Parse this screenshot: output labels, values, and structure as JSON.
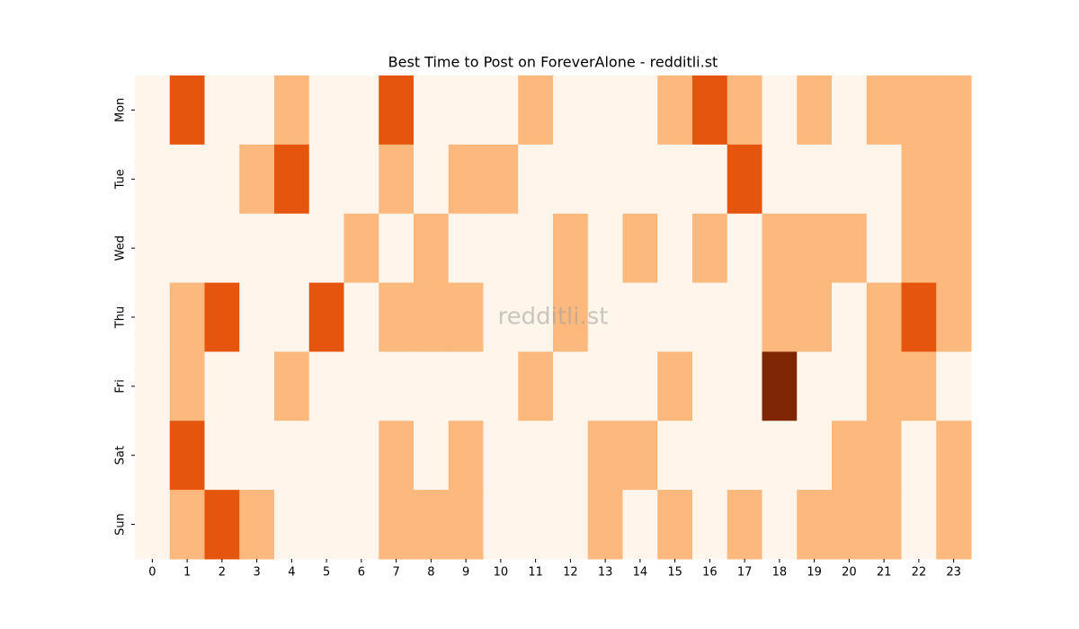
{
  "chart_data": {
    "type": "heatmap",
    "title": "Best Time to Post on ForeverAlone - redditli.st",
    "watermark": "redditli.st",
    "x": [
      0,
      1,
      2,
      3,
      4,
      5,
      6,
      7,
      8,
      9,
      10,
      11,
      12,
      13,
      14,
      15,
      16,
      17,
      18,
      19,
      20,
      21,
      22,
      23
    ],
    "y": [
      "Mon",
      "Tue",
      "Wed",
      "Thu",
      "Fri",
      "Sat",
      "Sun"
    ],
    "values": [
      [
        0,
        2,
        0,
        0,
        1,
        0,
        0,
        2,
        0,
        0,
        0,
        1,
        0,
        0,
        0,
        1,
        2,
        1,
        0,
        1,
        0,
        1,
        1,
        1
      ],
      [
        0,
        0,
        0,
        1,
        2,
        0,
        0,
        1,
        0,
        1,
        1,
        0,
        0,
        0,
        0,
        0,
        0,
        2,
        0,
        0,
        0,
        0,
        1,
        1
      ],
      [
        0,
        0,
        0,
        0,
        0,
        0,
        1,
        0,
        1,
        0,
        0,
        0,
        1,
        0,
        1,
        0,
        1,
        0,
        1,
        1,
        1,
        0,
        1,
        1
      ],
      [
        0,
        1,
        2,
        0,
        0,
        2,
        0,
        1,
        1,
        1,
        0,
        0,
        1,
        0,
        0,
        0,
        0,
        0,
        1,
        1,
        0,
        1,
        2,
        1
      ],
      [
        0,
        1,
        0,
        0,
        1,
        0,
        0,
        0,
        0,
        0,
        0,
        1,
        0,
        0,
        0,
        1,
        0,
        0,
        3,
        0,
        0,
        1,
        1,
        0
      ],
      [
        0,
        2,
        0,
        0,
        0,
        0,
        0,
        1,
        0,
        1,
        0,
        0,
        0,
        1,
        1,
        0,
        0,
        0,
        0,
        0,
        1,
        1,
        0,
        1
      ],
      [
        0,
        1,
        2,
        1,
        0,
        0,
        0,
        1,
        1,
        1,
        0,
        0,
        0,
        1,
        0,
        1,
        0,
        1,
        0,
        1,
        1,
        1,
        0,
        1
      ]
    ],
    "zlim": [
      0,
      3
    ],
    "colors": [
      "#fff5eb",
      "#fdb97d",
      "#e6550d",
      "#7f2704"
    ]
  }
}
